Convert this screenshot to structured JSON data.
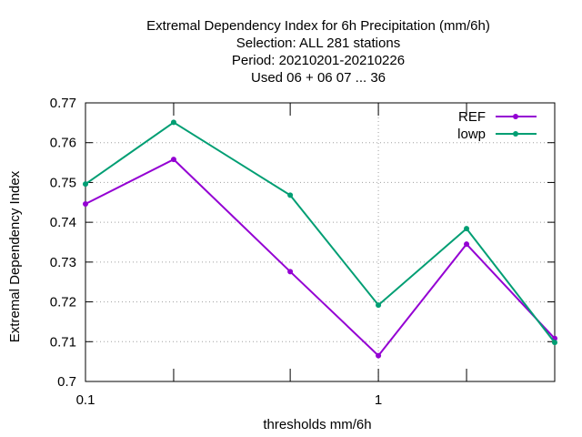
{
  "chart_data": {
    "type": "line",
    "title_lines": [
      "Extremal Dependency Index  for 6h Precipitation (mm/6h)",
      "Selection: ALL     281 stations",
      "Period: 20210201-20210226",
      "Used  06  + 06 07 ... 36"
    ],
    "xlabel": "thresholds mm/6h",
    "ylabel": "Extremal Dependency Index",
    "x_scale": "log",
    "xlim": [
      0.1,
      4
    ],
    "ylim": [
      0.7,
      0.77
    ],
    "x_ticks": [
      0.2,
      0.5,
      2,
      4
    ],
    "x_tick_labels": [
      {
        "value": 0.1,
        "label": "0.1"
      },
      {
        "value": 1,
        "label": "1"
      }
    ],
    "y_ticks": [
      0.7,
      0.71,
      0.72,
      0.73,
      0.74,
      0.75,
      0.76,
      0.77
    ],
    "y_tick_labels": [
      "0.7",
      "0.71",
      "0.72",
      "0.73",
      "0.74",
      "0.75",
      "0.76",
      "0.77"
    ],
    "grid": true,
    "legend_position": "top-right",
    "x": [
      0.1,
      0.2,
      0.5,
      1,
      2,
      4
    ],
    "series": [
      {
        "name": "REF",
        "color": "#9400d3",
        "values": [
          0.7446,
          0.7558,
          0.7276,
          0.7065,
          0.7345,
          0.7108
        ]
      },
      {
        "name": "lowp",
        "color": "#009e73",
        "values": [
          0.7496,
          0.7651,
          0.7468,
          0.7192,
          0.7384,
          0.7098
        ]
      }
    ]
  }
}
